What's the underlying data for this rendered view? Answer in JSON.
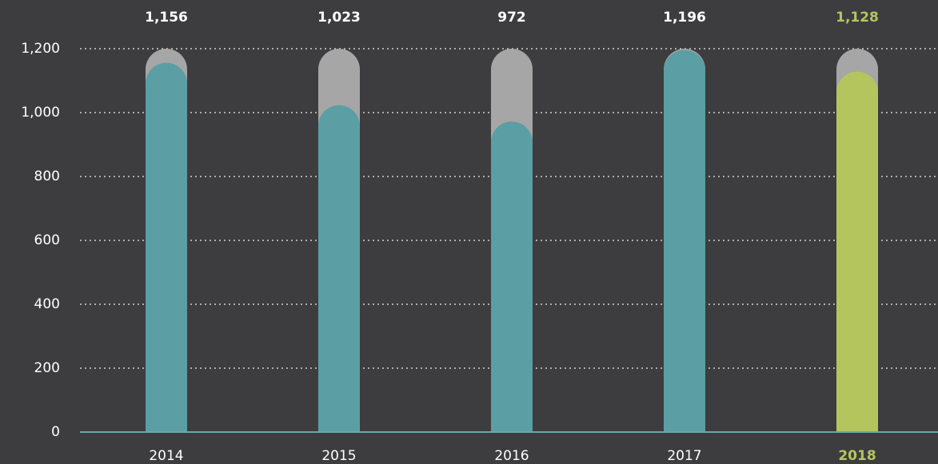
{
  "chart_data": {
    "type": "bar",
    "categories": [
      "2014",
      "2015",
      "2016",
      "2017",
      "2018"
    ],
    "values": [
      1156,
      1023,
      972,
      1196,
      1128
    ],
    "value_labels": [
      "1,156",
      "1,023",
      "972",
      "1,196",
      "1,128"
    ],
    "color": "#5b9ea4",
    "highlight": {
      "index": 4,
      "color": "#b5c55e"
    },
    "track_color": "#a6a6a6",
    "ylim": [
      0,
      1200
    ],
    "yticks": [
      0,
      200,
      400,
      600,
      800,
      {
        "value": 1000,
        "label": "1,000"
      },
      {
        "value": 1200,
        "label": "1,200"
      }
    ],
    "grid": true
  }
}
